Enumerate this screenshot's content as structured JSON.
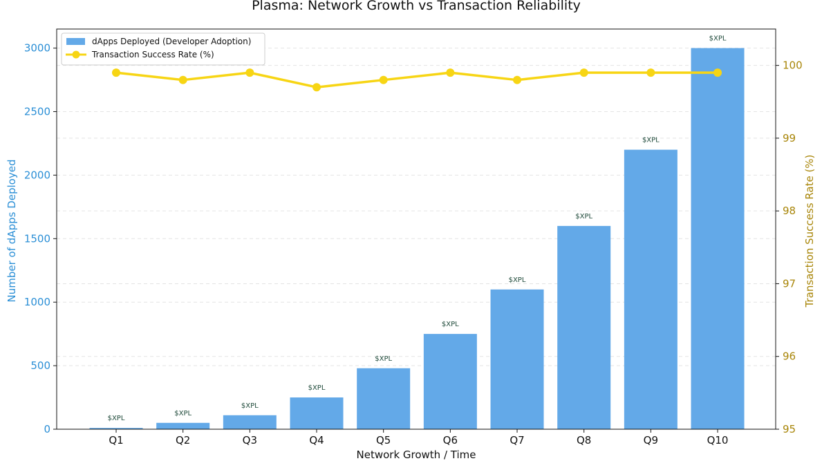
{
  "chart_data": {
    "type": "bar+line",
    "title": "Plasma: Network Growth vs Transaction Reliability",
    "xlabel": "Network Growth / Time",
    "ylabel_left": "Number of dApps Deployed",
    "ylabel_right": "Transaction Success Rate (%)",
    "categories": [
      "Q1",
      "Q2",
      "Q3",
      "Q4",
      "Q5",
      "Q6",
      "Q7",
      "Q8",
      "Q9",
      "Q10"
    ],
    "ylim_left": [
      0,
      3150
    ],
    "yticks_left": [
      0,
      500,
      1000,
      1500,
      2000,
      2500,
      3000
    ],
    "ylim_right": [
      95,
      100.5
    ],
    "yticks_right": [
      95,
      96,
      97,
      98,
      99,
      100
    ],
    "series": [
      {
        "name": "dApps Deployed (Developer Adoption)",
        "type": "bar",
        "axis": "left",
        "color": "#63a9e8",
        "values": [
          10,
          50,
          110,
          250,
          480,
          750,
          1100,
          1600,
          2200,
          3000
        ],
        "data_labels": [
          "$XPL",
          "$XPL",
          "$XPL",
          "$XPL",
          "$XPL",
          "$XPL",
          "$XPL",
          "$XPL",
          "$XPL",
          "$XPL"
        ]
      },
      {
        "name": "Transaction Success Rate (%)",
        "type": "line",
        "axis": "right",
        "color": "#f7d514",
        "values": [
          99.9,
          99.8,
          99.9,
          99.7,
          99.8,
          99.9,
          99.8,
          99.9,
          99.9,
          99.9
        ]
      }
    ],
    "grid": true,
    "legend_position": "top-left"
  }
}
